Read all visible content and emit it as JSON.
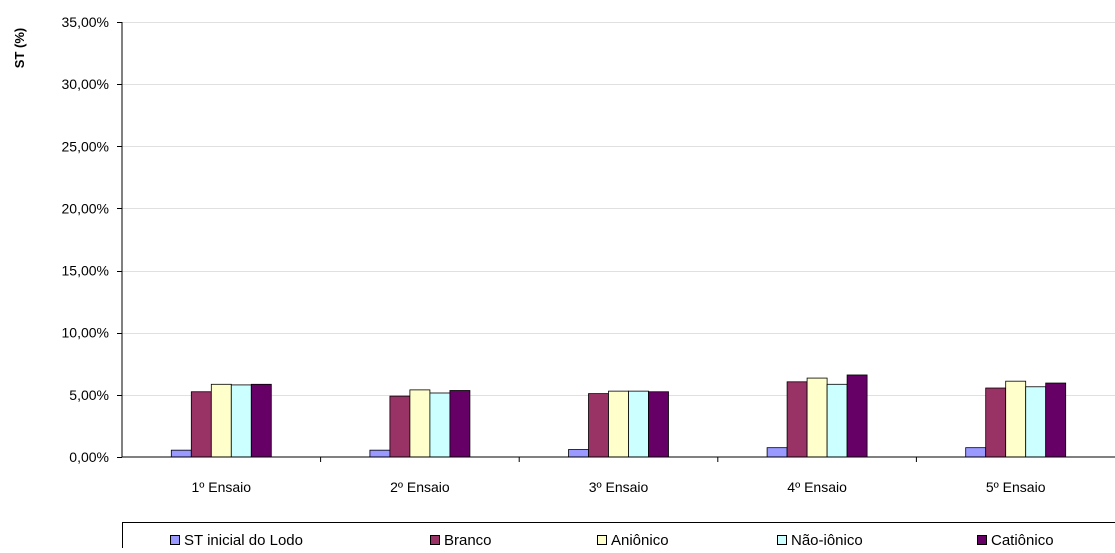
{
  "chart_data": {
    "type": "bar",
    "title": "",
    "xlabel": "",
    "ylabel": "ST (%)",
    "ylim": [
      0,
      35
    ],
    "ytick_values": [
      0,
      5,
      10,
      15,
      20,
      25,
      30,
      35
    ],
    "ytick_labels": [
      "0,00%",
      "5,00%",
      "10,00%",
      "15,00%",
      "20,00%",
      "25,00%",
      "30,00%",
      "35,00%"
    ],
    "grid": true,
    "legend_position": "bottom",
    "categories": [
      "1º Ensaio",
      "2º Ensaio",
      "3º Ensaio",
      "4º Ensaio",
      "5º Ensaio"
    ],
    "series": [
      {
        "name": "ST inicial do Lodo",
        "color": "#9999ff",
        "values": [
          0.55,
          0.55,
          0.6,
          0.75,
          0.75
        ]
      },
      {
        "name": "Branco",
        "color": "#993366",
        "values": [
          5.25,
          4.9,
          5.1,
          6.05,
          5.55
        ]
      },
      {
        "name": "Aniônico",
        "color": "#ffffcc",
        "values": [
          5.85,
          5.4,
          5.3,
          6.35,
          6.1
        ]
      },
      {
        "name": "Não-iônico",
        "color": "#ccffff",
        "values": [
          5.8,
          5.15,
          5.3,
          5.85,
          5.65
        ]
      },
      {
        "name": "Catiônico",
        "color": "#660066",
        "values": [
          5.85,
          5.35,
          5.25,
          6.6,
          5.95
        ]
      }
    ]
  }
}
